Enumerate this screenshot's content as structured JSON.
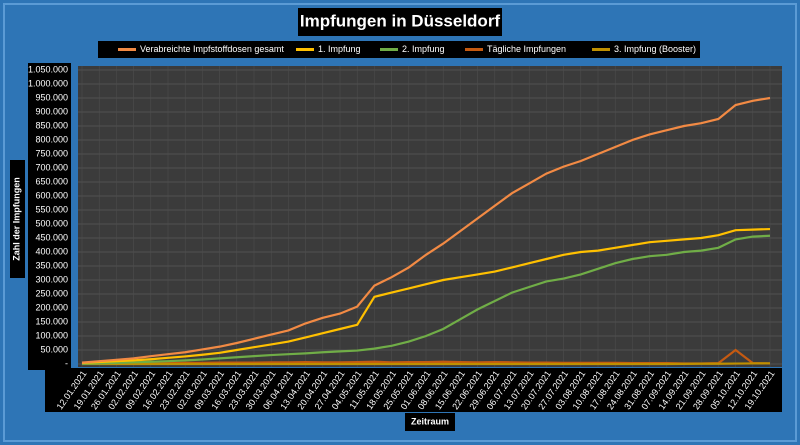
{
  "chart_data": {
    "type": "line",
    "title": "Impfungen in Düsseldorf",
    "x_label": "Zeitraum",
    "y_label": "Zahl der Impfungen",
    "categories": [
      "12.01.2021",
      "19.01.2021",
      "26.01.2021",
      "02.02.2021",
      "09.02.2021",
      "16.02.2021",
      "23.02.2021",
      "02.03.2021",
      "09.03.2021",
      "16.03.2021",
      "23.03.2021",
      "30.03.2021",
      "06.04.2021",
      "13.04.2021",
      "20.04.2021",
      "27.04.2021",
      "04.05.2021",
      "11.05.2021",
      "18.05.2021",
      "25.05.2021",
      "01.06.2021",
      "08.06.2021",
      "15.06.2021",
      "22.06.2021",
      "29.06.2021",
      "06.07.2021",
      "13.07.2021",
      "20.07.2021",
      "27.07.2021",
      "03.08.2021",
      "10.08.2021",
      "17.08.2021",
      "24.08.2021",
      "31.08.2021",
      "07.09.2021",
      "14.09.2021",
      "21.09.2021",
      "28.09.2021",
      "05.10.2021",
      "12.10.2021",
      "19.10.2021"
    ],
    "series": [
      {
        "name": "Verabreichte Impfstoffdosen gesamt",
        "color": "#f28a44",
        "values": [
          5000,
          10000,
          15000,
          20000,
          28000,
          35000,
          42000,
          52000,
          62000,
          75000,
          90000,
          105000,
          120000,
          145000,
          165000,
          180000,
          205000,
          280000,
          310000,
          345000,
          390000,
          430000,
          475000,
          520000,
          565000,
          610000,
          645000,
          680000,
          705000,
          725000,
          750000,
          775000,
          800000,
          820000,
          835000,
          850000,
          860000,
          875000,
          925000,
          940000,
          950000
        ]
      },
      {
        "name": "1. Impfung",
        "color": "#ffc000",
        "values": [
          4000,
          7000,
          10000,
          13000,
          17000,
          22000,
          27000,
          33000,
          40000,
          50000,
          60000,
          70000,
          80000,
          95000,
          110000,
          125000,
          140000,
          240000,
          255000,
          270000,
          285000,
          300000,
          310000,
          320000,
          330000,
          345000,
          360000,
          375000,
          390000,
          400000,
          405000,
          415000,
          425000,
          435000,
          440000,
          445000,
          450000,
          460000,
          478000,
          480000,
          482000
        ]
      },
      {
        "name": "2. Impfung",
        "color": "#70ad47",
        "values": [
          1000,
          2000,
          4000,
          6000,
          8000,
          10000,
          13000,
          16000,
          20000,
          24000,
          28000,
          32000,
          35000,
          38000,
          42000,
          45000,
          48000,
          55000,
          65000,
          80000,
          100000,
          125000,
          160000,
          195000,
          225000,
          255000,
          275000,
          295000,
          305000,
          320000,
          340000,
          360000,
          375000,
          385000,
          390000,
          400000,
          405000,
          415000,
          445000,
          455000,
          458000
        ]
      },
      {
        "name": "Tägliche Impfungen",
        "color": "#c55a11",
        "values": [
          2000,
          3000,
          3000,
          3000,
          4000,
          3000,
          4000,
          4000,
          5000,
          5000,
          5000,
          6000,
          6000,
          7000,
          6000,
          6000,
          7000,
          8000,
          6000,
          7000,
          7000,
          8000,
          7000,
          6000,
          7000,
          6000,
          5000,
          5000,
          4000,
          4000,
          4000,
          4000,
          3000,
          3000,
          3000,
          2000,
          2000,
          3000,
          50000,
          3000,
          2000
        ]
      },
      {
        "name": "3. Impfung (Booster)",
        "color": "#bf9000",
        "values": [
          0,
          0,
          0,
          0,
          0,
          0,
          0,
          0,
          0,
          0,
          0,
          0,
          0,
          0,
          0,
          0,
          0,
          0,
          0,
          0,
          0,
          0,
          0,
          0,
          0,
          0,
          0,
          0,
          0,
          0,
          0,
          0,
          0,
          0,
          0,
          500,
          800,
          1000,
          1500,
          2000,
          2500
        ]
      }
    ],
    "ylim": [
      0,
      1050000
    ],
    "yticks": [
      {
        "value": 0,
        "label": "-"
      },
      {
        "value": 50000,
        "label": "50.000"
      },
      {
        "value": 100000,
        "label": "100.000"
      },
      {
        "value": 150000,
        "label": "150.000"
      },
      {
        "value": 200000,
        "label": "200.000"
      },
      {
        "value": 250000,
        "label": "250.000"
      },
      {
        "value": 300000,
        "label": "300.000"
      },
      {
        "value": 350000,
        "label": "350.000"
      },
      {
        "value": 400000,
        "label": "400.000"
      },
      {
        "value": 450000,
        "label": "450.000"
      },
      {
        "value": 500000,
        "label": "500.000"
      },
      {
        "value": 550000,
        "label": "550.000"
      },
      {
        "value": 600000,
        "label": "600.000"
      },
      {
        "value": 650000,
        "label": "650.000"
      },
      {
        "value": 700000,
        "label": "700.000"
      },
      {
        "value": 750000,
        "label": "750.000"
      },
      {
        "value": 800000,
        "label": "800.000"
      },
      {
        "value": 850000,
        "label": "850.000"
      },
      {
        "value": 900000,
        "label": "900.000"
      },
      {
        "value": 950000,
        "label": "950.000"
      },
      {
        "value": 1000000,
        "label": "1.000.000"
      },
      {
        "value": 1050000,
        "label": "1.050.000"
      }
    ],
    "grid": true
  }
}
